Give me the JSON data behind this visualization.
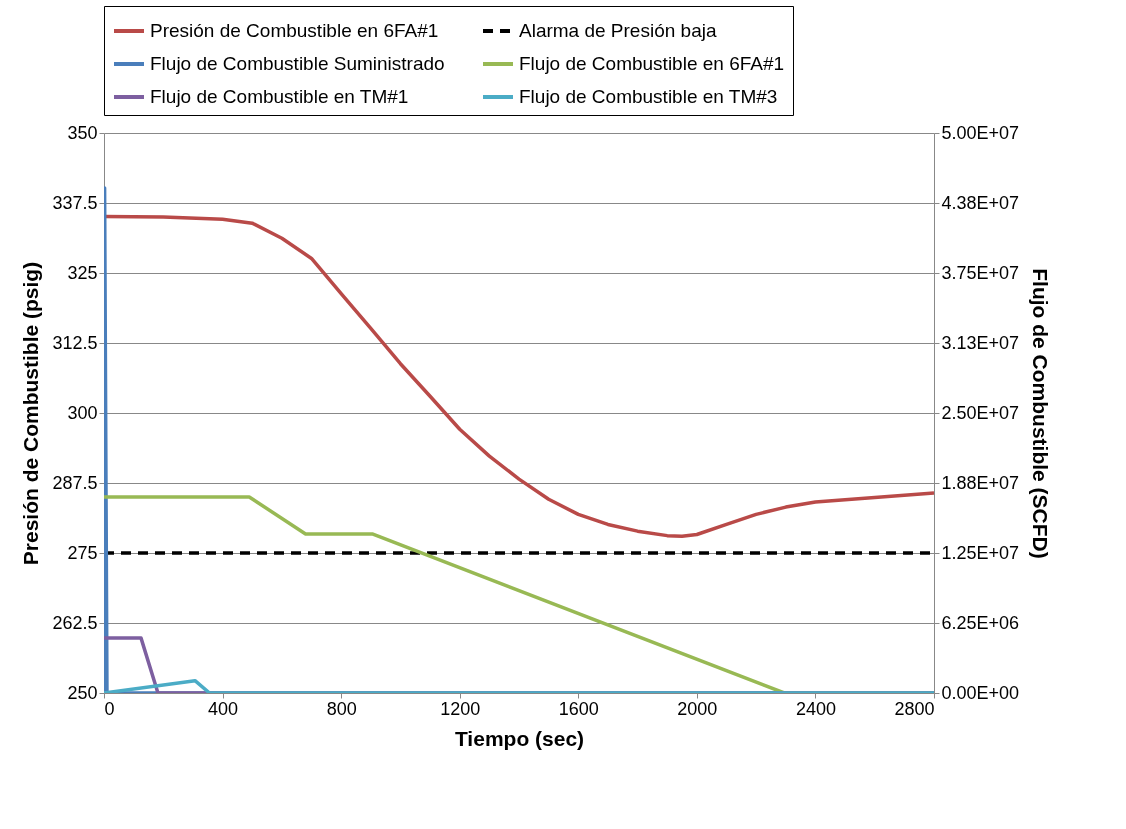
{
  "chart_data": {
    "type": "line",
    "xlabel": "Tiempo (sec)",
    "ylabel": "Presión de Combustible (psig)",
    "y2label": "Flujo de Combustible (SCFD)",
    "xlim": [
      0,
      2800
    ],
    "xticks": [
      0,
      400,
      800,
      1200,
      1600,
      2000,
      2400,
      2800
    ],
    "ylim": [
      250,
      350
    ],
    "yticks": [
      250,
      262.5,
      275,
      287.5,
      300,
      312.5,
      325,
      337.5,
      350
    ],
    "y2lim": [
      0,
      50000000
    ],
    "y2ticks": [
      {
        "value": 0,
        "label": "0.00E+00"
      },
      {
        "value": 6250000,
        "label": "6.25E+06"
      },
      {
        "value": 12500000,
        "label": "1.25E+07"
      },
      {
        "value": 18750000,
        "label": "1.88E+07"
      },
      {
        "value": 25000000,
        "label": "2.50E+07"
      },
      {
        "value": 31250000,
        "label": "3.13E+07"
      },
      {
        "value": 37500000,
        "label": "3.75E+07"
      },
      {
        "value": 43750000,
        "label": "4.38E+07"
      },
      {
        "value": 50000000,
        "label": "5.00E+07"
      }
    ],
    "grid": "y",
    "legend": "top",
    "series": [
      {
        "name": "Presión de Combustible en 6FA#1",
        "color": "#b94a48",
        "x": [
          0,
          200,
          400,
          500,
          600,
          700,
          800,
          900,
          1000,
          1100,
          1200,
          1300,
          1400,
          1500,
          1600,
          1700,
          1800,
          1900,
          1950,
          2000,
          2100,
          2200,
          2300,
          2400,
          2600,
          2800
        ],
        "values": [
          335.1,
          335,
          334.6,
          333.9,
          331.2,
          327.6,
          321.3,
          315.1,
          308.8,
          303,
          297.1,
          292.3,
          288.2,
          284.6,
          281.9,
          280.1,
          278.9,
          278.1,
          278,
          278.3,
          280.1,
          281.9,
          283.2,
          284.1,
          284.9,
          285.7
        ]
      },
      {
        "name": "Alarma de Presión baja",
        "color": "#000000",
        "line_style": "dashed",
        "x": [
          0,
          2800
        ],
        "values": [
          275,
          275
        ]
      },
      {
        "name": "Flujo de Combustible Suministrado",
        "color": "#4a7ebb",
        "axis": "y2",
        "x": [
          0,
          2,
          10,
          2800
        ],
        "values": [
          0,
          45100000,
          0,
          0
        ]
      },
      {
        "name": "Flujo de Combustible en 6FA#1",
        "color": "#98b954",
        "axis": "y2",
        "x": [
          0,
          490,
          680,
          905,
          2295,
          2800
        ],
        "values": [
          17500000,
          17500000,
          14200000,
          14200000,
          0,
          0
        ]
      },
      {
        "name": "Flujo de Combustible en TM#1",
        "color": "#7d5fa0",
        "axis": "y2",
        "x": [
          0,
          125,
          182,
          2800
        ],
        "values": [
          4900000,
          4900000,
          0,
          0
        ]
      },
      {
        "name": "Flujo de Combustible en TM#3",
        "color": "#4bacc6",
        "axis": "y2",
        "x": [
          0,
          307,
          356,
          2800
        ],
        "values": [
          0,
          1100000,
          0,
          0
        ]
      }
    ]
  }
}
